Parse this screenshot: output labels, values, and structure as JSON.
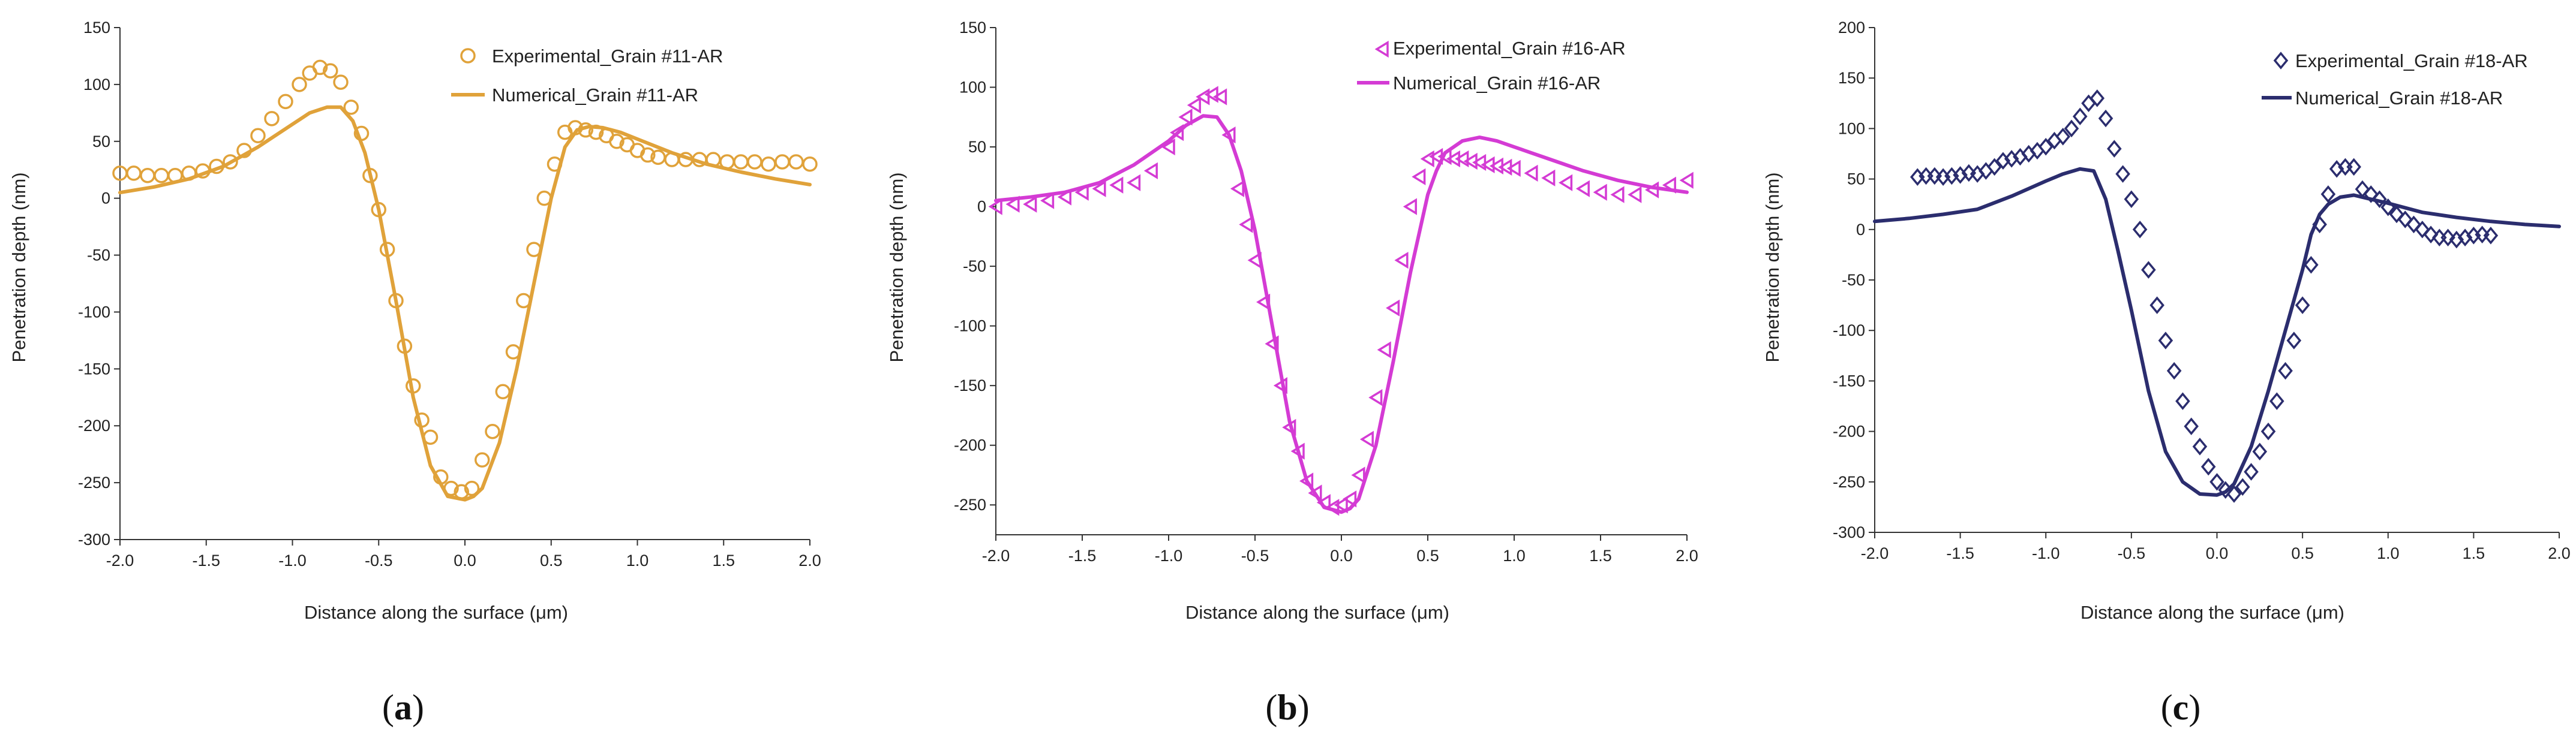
{
  "figure": {
    "background": "#ffffff"
  },
  "chart_data": [
    {
      "type": "line",
      "panel_label": "(a)",
      "panel_letter": "a",
      "title": "",
      "xlabel": "Distance along the surface (μm)",
      "ylabel": "Penetration depth (nm)",
      "xlim": [
        -2.0,
        2.0
      ],
      "ylim": [
        -300,
        150
      ],
      "xticks": [
        -2.0,
        -1.5,
        -1.0,
        -0.5,
        0.0,
        0.5,
        1.0,
        1.5,
        2.0
      ],
      "xtick_labels": [
        "-2.0",
        "-1.5",
        "-1.0",
        "-0.5",
        "0.0",
        "0.5",
        "1.0",
        "1.5",
        "2.0"
      ],
      "yticks": [
        -300,
        -250,
        -200,
        -150,
        -100,
        -50,
        0,
        50,
        100,
        150
      ],
      "ytick_labels": [
        "-300",
        "-250",
        "-200",
        "-150",
        "-100",
        "-50",
        "0",
        "50",
        "100",
        "150"
      ],
      "grid": false,
      "legend_position": "top-right",
      "series": [
        {
          "name": "Experimental_Grain #11-AR",
          "kind": "scatter",
          "marker": "circle",
          "color": "#E0A23A",
          "x": [
            -2.0,
            -1.92,
            -1.84,
            -1.76,
            -1.68,
            -1.6,
            -1.52,
            -1.44,
            -1.36,
            -1.28,
            -1.2,
            -1.12,
            -1.04,
            -0.96,
            -0.9,
            -0.84,
            -0.78,
            -0.72,
            -0.66,
            -0.6,
            -0.55,
            -0.5,
            -0.45,
            -0.4,
            -0.35,
            -0.3,
            -0.25,
            -0.2,
            -0.14,
            -0.08,
            -0.02,
            0.04,
            0.1,
            0.16,
            0.22,
            0.28,
            0.34,
            0.4,
            0.46,
            0.52,
            0.58,
            0.64,
            0.7,
            0.76,
            0.82,
            0.88,
            0.94,
            1.0,
            1.06,
            1.12,
            1.2,
            1.28,
            1.36,
            1.44,
            1.52,
            1.6,
            1.68,
            1.76,
            1.84,
            1.92,
            2.0
          ],
          "y": [
            22,
            22,
            20,
            20,
            20,
            22,
            24,
            28,
            32,
            42,
            55,
            70,
            85,
            100,
            110,
            115,
            112,
            102,
            80,
            57,
            20,
            -10,
            -45,
            -90,
            -130,
            -165,
            -195,
            -210,
            -245,
            -255,
            -258,
            -255,
            -230,
            -205,
            -170,
            -135,
            -90,
            -45,
            0,
            30,
            58,
            62,
            60,
            58,
            55,
            50,
            47,
            42,
            38,
            36,
            34,
            34,
            34,
            34,
            32,
            32,
            32,
            30,
            32,
            32,
            30
          ]
        },
        {
          "name": "Numerical_Grain #11-AR",
          "kind": "line",
          "color": "#E0A23A",
          "x": [
            -2.0,
            -1.8,
            -1.6,
            -1.4,
            -1.2,
            -1.0,
            -0.9,
            -0.8,
            -0.72,
            -0.65,
            -0.58,
            -0.5,
            -0.4,
            -0.3,
            -0.2,
            -0.1,
            0.0,
            0.05,
            0.1,
            0.2,
            0.3,
            0.4,
            0.5,
            0.58,
            0.65,
            0.72,
            0.8,
            0.9,
            1.0,
            1.2,
            1.4,
            1.6,
            1.8,
            2.0
          ],
          "y": [
            5,
            10,
            17,
            28,
            45,
            65,
            75,
            80,
            80,
            68,
            40,
            -10,
            -90,
            -175,
            -235,
            -262,
            -265,
            -262,
            -255,
            -215,
            -150,
            -75,
            0,
            45,
            60,
            63,
            62,
            58,
            52,
            40,
            30,
            23,
            17,
            12
          ]
        }
      ]
    },
    {
      "type": "line",
      "panel_label": "(b)",
      "panel_letter": "b",
      "title": "",
      "xlabel": "Distance along the surface (μm)",
      "ylabel": "Penetration depth (nm)",
      "xlim": [
        -2.0,
        2.0
      ],
      "ylim": [
        -275,
        150
      ],
      "xticks": [
        -2.0,
        -1.5,
        -1.0,
        -0.5,
        0.0,
        0.5,
        1.0,
        1.5,
        2.0
      ],
      "xtick_labels": [
        "-2.0",
        "-1.5",
        "-1.0",
        "-0.5",
        "0.0",
        "0.5",
        "1.0",
        "1.5",
        "2.0"
      ],
      "yticks": [
        -250,
        -200,
        -150,
        -100,
        -50,
        0,
        50,
        100,
        150
      ],
      "ytick_labels": [
        "-250",
        "-200",
        "-150",
        "-100",
        "-50",
        "0",
        "50",
        "100",
        "150"
      ],
      "grid": false,
      "legend_position": "top-right",
      "series": [
        {
          "name": "Experimental_Grain #16-AR",
          "kind": "scatter",
          "marker": "triangle-left",
          "color": "#D43BD4",
          "x": [
            -2.0,
            -1.9,
            -1.8,
            -1.7,
            -1.6,
            -1.5,
            -1.4,
            -1.3,
            -1.2,
            -1.1,
            -1.0,
            -0.95,
            -0.9,
            -0.85,
            -0.8,
            -0.75,
            -0.7,
            -0.65,
            -0.6,
            -0.55,
            -0.5,
            -0.45,
            -0.4,
            -0.35,
            -0.3,
            -0.25,
            -0.2,
            -0.15,
            -0.1,
            -0.05,
            0.0,
            0.05,
            0.1,
            0.15,
            0.2,
            0.25,
            0.3,
            0.35,
            0.4,
            0.45,
            0.5,
            0.55,
            0.6,
            0.65,
            0.7,
            0.75,
            0.8,
            0.85,
            0.9,
            0.95,
            1.0,
            1.1,
            1.2,
            1.3,
            1.4,
            1.5,
            1.6,
            1.7,
            1.8,
            1.9,
            2.0
          ],
          "y": [
            0,
            2,
            2,
            5,
            8,
            12,
            15,
            18,
            20,
            30,
            50,
            62,
            75,
            85,
            92,
            94,
            92,
            60,
            15,
            -15,
            -45,
            -80,
            -115,
            -150,
            -185,
            -205,
            -230,
            -240,
            -248,
            -252,
            -250,
            -245,
            -225,
            -195,
            -160,
            -120,
            -85,
            -45,
            0,
            25,
            40,
            42,
            42,
            40,
            40,
            38,
            37,
            35,
            34,
            33,
            32,
            28,
            24,
            20,
            15,
            12,
            10,
            10,
            14,
            18,
            22
          ]
        },
        {
          "name": "Numerical_Grain #16-AR",
          "kind": "line",
          "color": "#D43BD4",
          "x": [
            -2.0,
            -1.8,
            -1.6,
            -1.4,
            -1.2,
            -1.0,
            -0.9,
            -0.8,
            -0.72,
            -0.65,
            -0.58,
            -0.5,
            -0.4,
            -0.3,
            -0.2,
            -0.1,
            0.0,
            0.05,
            0.1,
            0.2,
            0.3,
            0.4,
            0.5,
            0.55,
            0.6,
            0.7,
            0.8,
            0.9,
            1.0,
            1.2,
            1.4,
            1.6,
            1.8,
            2.0
          ],
          "y": [
            5,
            8,
            12,
            20,
            35,
            55,
            68,
            76,
            75,
            60,
            30,
            -20,
            -100,
            -180,
            -230,
            -252,
            -256,
            -253,
            -245,
            -200,
            -130,
            -55,
            10,
            30,
            45,
            55,
            58,
            55,
            50,
            40,
            30,
            22,
            16,
            12
          ]
        }
      ]
    },
    {
      "type": "line",
      "panel_label": "(c)",
      "panel_letter": "c",
      "title": "",
      "xlabel": "Distance along the surface (μm)",
      "ylabel": "Penetration depth (nm)",
      "xlim": [
        -2.0,
        2.0
      ],
      "ylim": [
        -300,
        200
      ],
      "xticks": [
        -2.0,
        -1.5,
        -1.0,
        -0.5,
        0.0,
        0.5,
        1.0,
        1.5,
        2.0
      ],
      "xtick_labels": [
        "-2.0",
        "-1.5",
        "-1.0",
        "-0.5",
        "0.0",
        "0.5",
        "1.0",
        "1.5",
        "2.0"
      ],
      "yticks": [
        -300,
        -250,
        -200,
        -150,
        -100,
        -50,
        0,
        50,
        100,
        150,
        200
      ],
      "ytick_labels": [
        "-300",
        "-250",
        "-200",
        "-150",
        "-100",
        "-50",
        "0",
        "50",
        "100",
        "150",
        "200"
      ],
      "grid": false,
      "legend_position": "top-right",
      "series": [
        {
          "name": "Experimental_Grain #18-AR",
          "kind": "scatter",
          "marker": "diamond",
          "color": "#2B2D6E",
          "x": [
            -1.75,
            -1.7,
            -1.65,
            -1.6,
            -1.55,
            -1.5,
            -1.45,
            -1.4,
            -1.35,
            -1.3,
            -1.25,
            -1.2,
            -1.15,
            -1.1,
            -1.05,
            -1.0,
            -0.95,
            -0.9,
            -0.85,
            -0.8,
            -0.75,
            -0.7,
            -0.65,
            -0.6,
            -0.55,
            -0.5,
            -0.45,
            -0.4,
            -0.35,
            -0.3,
            -0.25,
            -0.2,
            -0.15,
            -0.1,
            -0.05,
            0.0,
            0.05,
            0.1,
            0.15,
            0.2,
            0.25,
            0.3,
            0.35,
            0.4,
            0.45,
            0.5,
            0.55,
            0.6,
            0.65,
            0.7,
            0.75,
            0.8,
            0.85,
            0.9,
            0.95,
            1.0,
            1.05,
            1.1,
            1.15,
            1.2,
            1.25,
            1.3,
            1.35,
            1.4,
            1.45,
            1.5,
            1.55,
            1.6
          ],
          "y": [
            52,
            53,
            53,
            52,
            53,
            54,
            56,
            55,
            58,
            62,
            68,
            70,
            72,
            75,
            78,
            82,
            88,
            92,
            100,
            112,
            125,
            130,
            110,
            80,
            55,
            30,
            0,
            -40,
            -75,
            -110,
            -140,
            -170,
            -195,
            -215,
            -235,
            -250,
            -258,
            -262,
            -255,
            -240,
            -220,
            -200,
            -170,
            -140,
            -110,
            -75,
            -35,
            5,
            35,
            60,
            62,
            62,
            40,
            35,
            30,
            22,
            15,
            10,
            5,
            0,
            -5,
            -8,
            -8,
            -10,
            -8,
            -6,
            -5,
            -6
          ]
        },
        {
          "name": "Numerical_Grain #18-AR",
          "kind": "line",
          "color": "#2B2D6E",
          "x": [
            -2.0,
            -1.8,
            -1.6,
            -1.4,
            -1.2,
            -1.0,
            -0.9,
            -0.8,
            -0.72,
            -0.65,
            -0.58,
            -0.5,
            -0.4,
            -0.3,
            -0.2,
            -0.1,
            0.0,
            0.05,
            0.1,
            0.2,
            0.3,
            0.4,
            0.5,
            0.55,
            0.6,
            0.65,
            0.72,
            0.8,
            0.9,
            1.0,
            1.2,
            1.4,
            1.6,
            1.8,
            2.0
          ],
          "y": [
            8,
            11,
            15,
            20,
            33,
            48,
            55,
            60,
            58,
            30,
            -20,
            -80,
            -160,
            -220,
            -250,
            -262,
            -263,
            -260,
            -252,
            -215,
            -160,
            -100,
            -40,
            -5,
            15,
            25,
            32,
            34,
            30,
            26,
            17,
            12,
            8,
            5,
            3
          ]
        }
      ]
    }
  ]
}
